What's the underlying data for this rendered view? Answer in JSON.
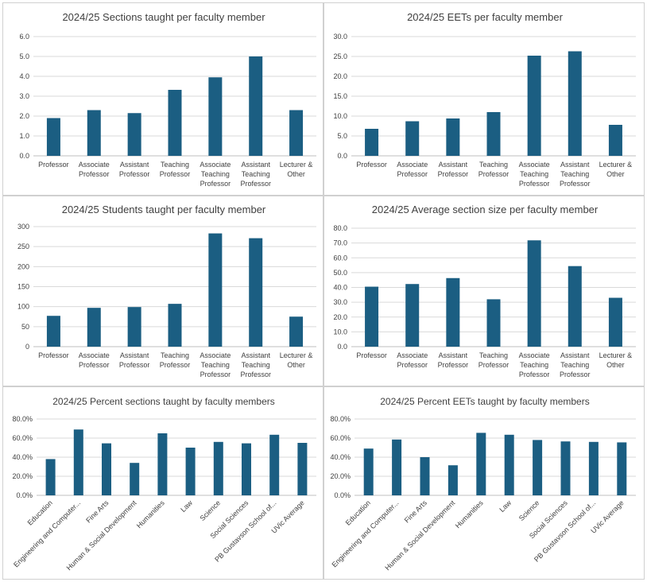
{
  "colors": {
    "bar": "#1b5e82",
    "grid": "#d9d9d9",
    "text": "#404040"
  },
  "chart_data": [
    {
      "type": "bar",
      "title": "2024/25 Sections taught per faculty member",
      "categories": [
        "Professor",
        "Associate Professor",
        "Assistant Professor",
        "Teaching Professor",
        "Associate Teaching Professor",
        "Assistant Teaching Professor",
        "Lecturer & Other"
      ],
      "category_lines": [
        [
          "Professor"
        ],
        [
          "Associate",
          "Professor"
        ],
        [
          "Assistant",
          "Professor"
        ],
        [
          "Teaching",
          "Professor"
        ],
        [
          "Associate",
          "Teaching",
          "Professor"
        ],
        [
          "Assistant",
          "Teaching",
          "Professor"
        ],
        [
          "Lecturer &",
          "Other"
        ]
      ],
      "values": [
        1.9,
        2.3,
        2.15,
        3.32,
        3.95,
        5.0,
        2.3
      ],
      "ylim": [
        0,
        6
      ],
      "yticks": [
        "0.0",
        "1.0",
        "2.0",
        "3.0",
        "4.0",
        "5.0",
        "6.0"
      ],
      "xlabel": "",
      "ylabel": "",
      "legend": "none",
      "grid": true
    },
    {
      "type": "bar",
      "title": "2024/25 EETs per faculty member",
      "categories": [
        "Professor",
        "Associate Professor",
        "Assistant Professor",
        "Teaching Professor",
        "Associate Teaching Professor",
        "Assistant Teaching Professor",
        "Lecturer & Other"
      ],
      "category_lines": [
        [
          "Professor"
        ],
        [
          "Associate",
          "Professor"
        ],
        [
          "Assistant",
          "Professor"
        ],
        [
          "Teaching",
          "Professor"
        ],
        [
          "Associate",
          "Teaching",
          "Professor"
        ],
        [
          "Assistant",
          "Teaching",
          "Professor"
        ],
        [
          "Lecturer &",
          "Other"
        ]
      ],
      "values": [
        6.8,
        8.7,
        9.4,
        11.0,
        25.2,
        26.3,
        7.8
      ],
      "ylim": [
        0,
        30
      ],
      "yticks": [
        "0.0",
        "5.0",
        "10.0",
        "15.0",
        "20.0",
        "25.0",
        "30.0"
      ],
      "xlabel": "",
      "ylabel": "",
      "legend": "none",
      "grid": true
    },
    {
      "type": "bar",
      "title": "2024/25 Students taught per faculty member",
      "categories": [
        "Professor",
        "Associate Professor",
        "Assistant Professor",
        "Teaching Professor",
        "Associate Teaching Professor",
        "Assistant Teaching Professor",
        "Lecturer & Other"
      ],
      "category_lines": [
        [
          "Professor"
        ],
        [
          "Associate",
          "Professor"
        ],
        [
          "Assistant",
          "Professor"
        ],
        [
          "Teaching",
          "Professor"
        ],
        [
          "Associate",
          "Teaching",
          "Professor"
        ],
        [
          "Assistant",
          "Teaching",
          "Professor"
        ],
        [
          "Lecturer &",
          "Other"
        ]
      ],
      "values": [
        77,
        97,
        99,
        107,
        283,
        271,
        75
      ],
      "ylim": [
        0,
        300
      ],
      "yticks": [
        "0",
        "50",
        "100",
        "150",
        "200",
        "250",
        "300"
      ],
      "xlabel": "",
      "ylabel": "",
      "legend": "none",
      "grid": true
    },
    {
      "type": "bar",
      "title": "2024/25 Average section size per faculty member",
      "categories": [
        "Professor",
        "Associate Professor",
        "Assistant Professor",
        "Teaching Professor",
        "Associate Teaching Professor",
        "Assistant Teaching Professor",
        "Lecturer & Other"
      ],
      "category_lines": [
        [
          "Professor"
        ],
        [
          "Associate",
          "Professor"
        ],
        [
          "Assistant",
          "Professor"
        ],
        [
          "Teaching",
          "Professor"
        ],
        [
          "Associate",
          "Teaching",
          "Professor"
        ],
        [
          "Assistant",
          "Teaching",
          "Professor"
        ],
        [
          "Lecturer &",
          "Other"
        ]
      ],
      "values": [
        40.5,
        42.3,
        46.3,
        32.0,
        71.8,
        54.4,
        33.0
      ],
      "ylim": [
        0,
        80
      ],
      "yticks": [
        "0.0",
        "10.0",
        "20.0",
        "30.0",
        "40.0",
        "50.0",
        "60.0",
        "70.0",
        "80.0"
      ],
      "xlabel": "",
      "ylabel": "",
      "legend": "none",
      "grid": true
    },
    {
      "type": "bar",
      "title": "2024/25 Percent sections taught by faculty members",
      "categories": [
        "Education",
        "Engineering and Computer...",
        "Fine Arts",
        "Human & Social Development",
        "Humanities",
        "Law",
        "Science",
        "Social Sciences",
        "PB Gustavson School of...",
        "UVic Average"
      ],
      "category_lines": [
        [
          "Education"
        ],
        [
          "Engineering and Computer..."
        ],
        [
          "Fine Arts"
        ],
        [
          "Human & Social Development"
        ],
        [
          "Humanities"
        ],
        [
          "Law"
        ],
        [
          "Science"
        ],
        [
          "Social Sciences"
        ],
        [
          "PB Gustavson School of..."
        ],
        [
          "UVic Average"
        ]
      ],
      "values": [
        38.0,
        69.0,
        54.5,
        34.0,
        65.0,
        50.0,
        56.0,
        54.5,
        63.5,
        55.0
      ],
      "ylim": [
        0,
        80
      ],
      "yticks": [
        "0.0%",
        "20.0%",
        "40.0%",
        "60.0%",
        "80.0%"
      ],
      "xlabel": "",
      "ylabel": "",
      "legend": "none",
      "grid": true
    },
    {
      "type": "bar",
      "title": "2024/25 Percent EETs taught by faculty members",
      "categories": [
        "Education",
        "Engineering and Computer...",
        "Fine Arts",
        "Human & Social Development",
        "Humanities",
        "Law",
        "Science",
        "Social Sciences",
        "PB Gustavson School of...",
        "UVic Average"
      ],
      "category_lines": [
        [
          "Education"
        ],
        [
          "Engineering and Computer..."
        ],
        [
          "Fine Arts"
        ],
        [
          "Human & Social Development"
        ],
        [
          "Humanities"
        ],
        [
          "Law"
        ],
        [
          "Science"
        ],
        [
          "Social Sciences"
        ],
        [
          "PB Gustavson School of..."
        ],
        [
          "UVic Average"
        ]
      ],
      "values": [
        49.0,
        58.5,
        40.0,
        31.5,
        65.5,
        63.5,
        58.0,
        56.5,
        56.0,
        55.5
      ],
      "ylim": [
        0,
        80
      ],
      "yticks": [
        "0.0%",
        "20.0%",
        "40.0%",
        "60.0%",
        "80.0%"
      ],
      "xlabel": "",
      "ylabel": "",
      "legend": "none",
      "grid": true
    }
  ]
}
